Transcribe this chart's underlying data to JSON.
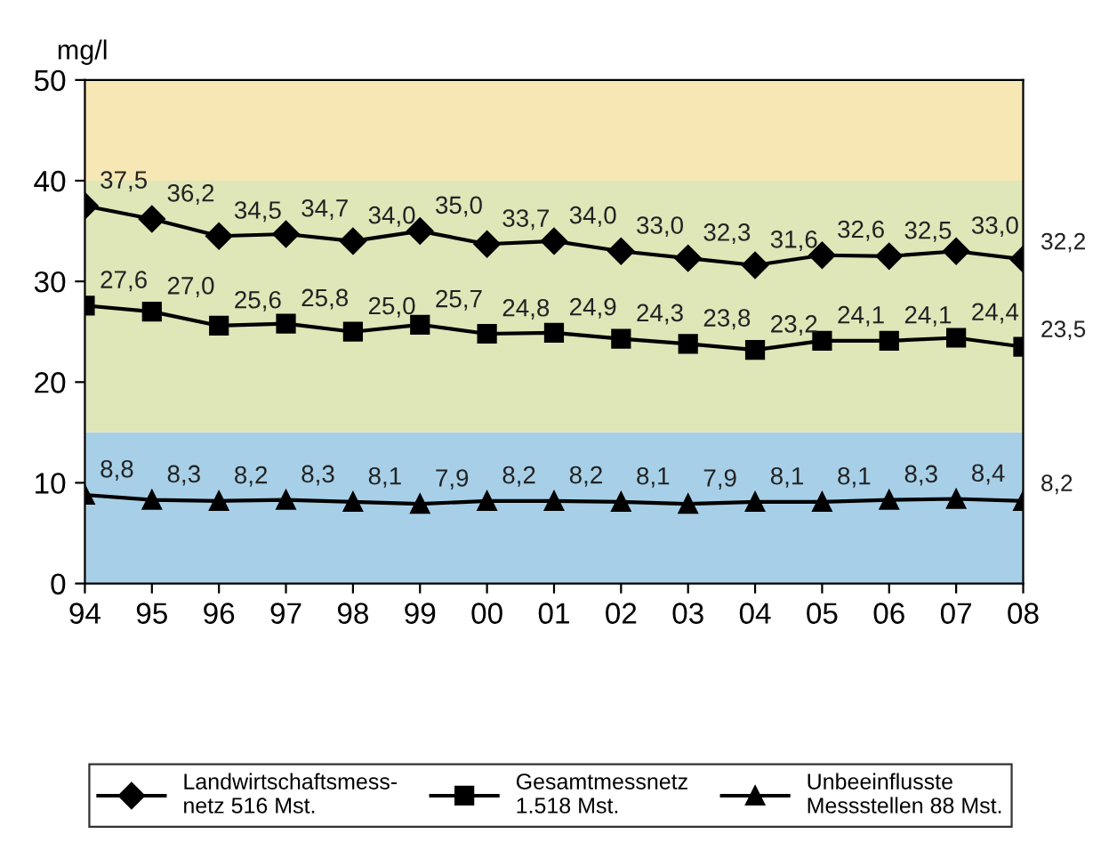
{
  "chart_data": {
    "type": "line",
    "ylabel": "mg/l",
    "categories": [
      "94",
      "95",
      "96",
      "97",
      "98",
      "99",
      "00",
      "01",
      "02",
      "03",
      "04",
      "05",
      "06",
      "07",
      "08"
    ],
    "ylim": [
      0,
      50
    ],
    "yticks": [
      0,
      10,
      20,
      30,
      40,
      50
    ],
    "grid": false,
    "legend": "bottom",
    "line_style": "solid",
    "bands": [
      {
        "axis": "y",
        "from": 0,
        "to": 15,
        "color": "#a7d0e8"
      },
      {
        "axis": "y",
        "from": 15,
        "to": 40,
        "color": "#dfe6b8"
      },
      {
        "axis": "y",
        "from": 40,
        "to": 50,
        "color": "#f6e7b4"
      }
    ],
    "series": [
      {
        "name": "Landwirtschaftsmess-\nnetz 516 Mst.",
        "color": "#000000",
        "marker": "diamond",
        "values": [
          37.5,
          36.2,
          34.5,
          34.7,
          34.0,
          35.0,
          33.7,
          34.0,
          33.0,
          32.3,
          31.6,
          32.6,
          32.5,
          33.0,
          32.2
        ],
        "value_labels": [
          "37,5",
          "36,2",
          "34,5",
          "34,7",
          "34,0",
          "35,0",
          "33,7",
          "34,0",
          "33,0",
          "32,3",
          "31,6",
          "32,6",
          "32,5",
          "33,0",
          "32,2"
        ]
      },
      {
        "name": "Gesamtmessnetz\n1.518 Mst.",
        "color": "#000000",
        "marker": "square",
        "values": [
          27.6,
          27.0,
          25.6,
          25.8,
          25.0,
          25.7,
          24.8,
          24.9,
          24.3,
          23.8,
          23.2,
          24.1,
          24.1,
          24.4,
          23.5
        ],
        "value_labels": [
          "27,6",
          "27,0",
          "25,6",
          "25,8",
          "25,0",
          "25,7",
          "24,8",
          "24,9",
          "24,3",
          "23,8",
          "23,2",
          "24,1",
          "24,1",
          "24,4",
          "23,5"
        ]
      },
      {
        "name": "Unbeeinflusste\nMessstellen 88 Mst.",
        "color": "#000000",
        "marker": "triangle",
        "values": [
          8.8,
          8.3,
          8.2,
          8.3,
          8.1,
          7.9,
          8.2,
          8.2,
          8.1,
          7.9,
          8.1,
          8.1,
          8.3,
          8.4,
          8.2
        ],
        "value_labels": [
          "8,8",
          "8,3",
          "8,2",
          "8,3",
          "8,1",
          "7,9",
          "8,2",
          "8,2",
          "8,1",
          "7,9",
          "8,1",
          "8,1",
          "8,3",
          "8,4",
          "8,2"
        ]
      }
    ]
  }
}
